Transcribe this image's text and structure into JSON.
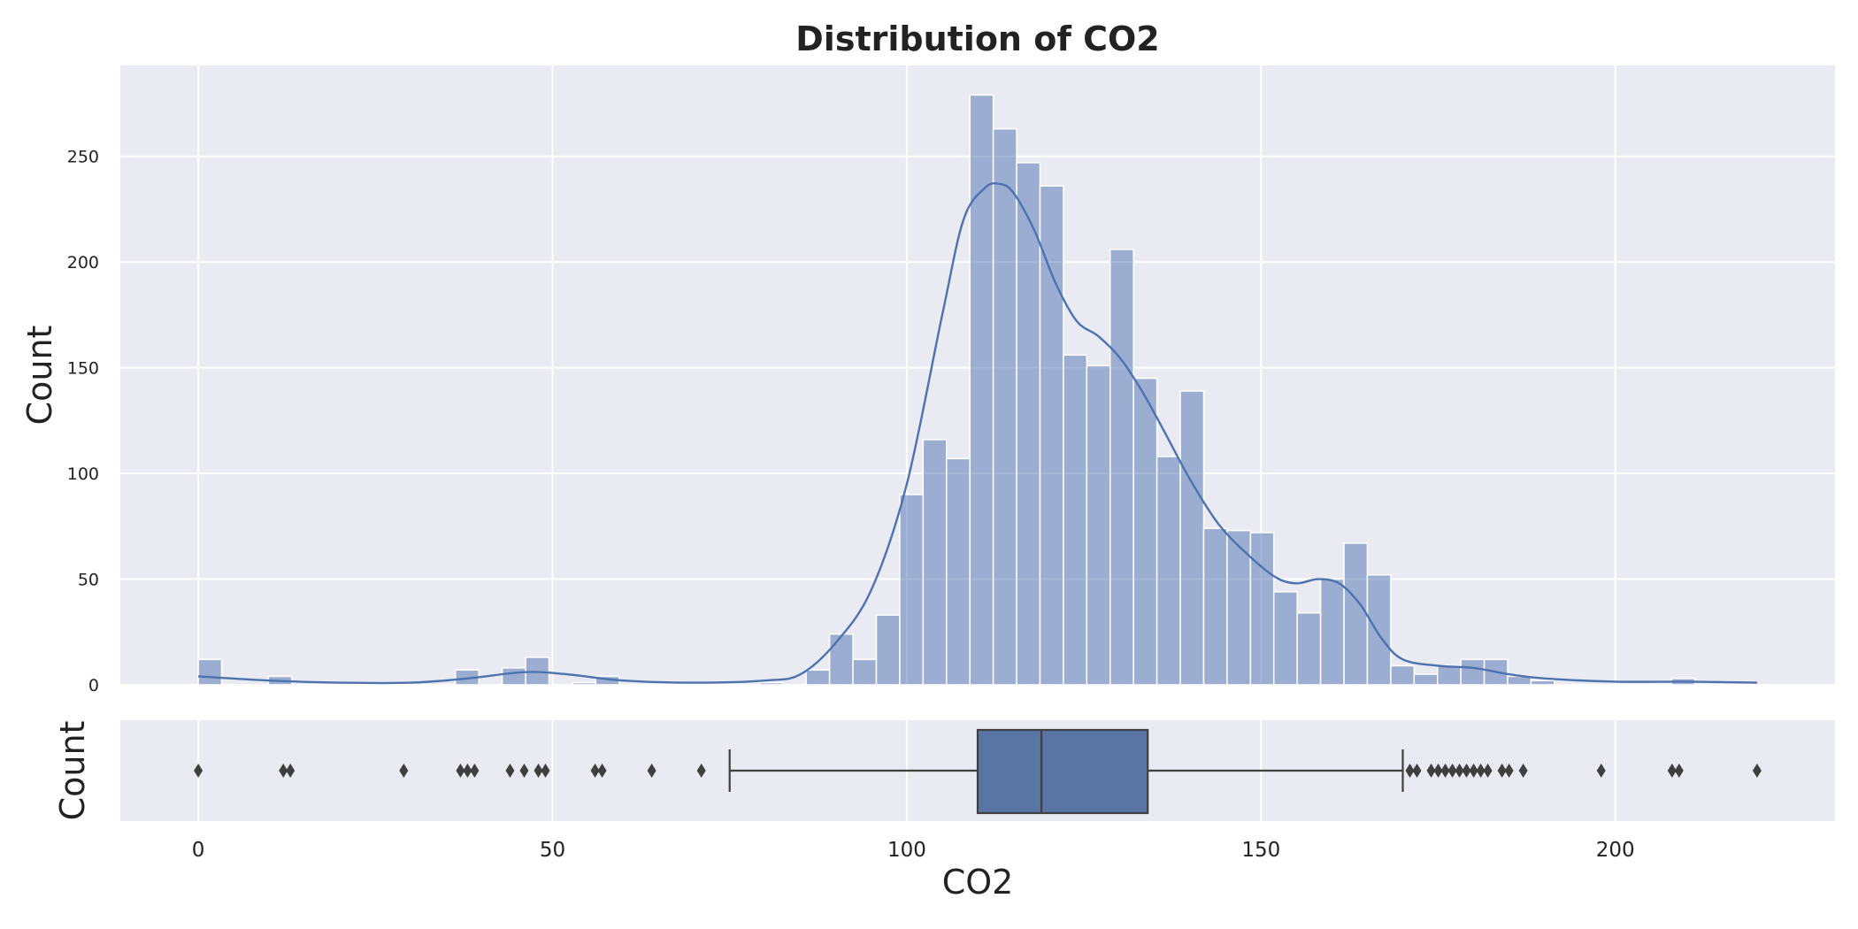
{
  "chart_data": [
    {
      "type": "histogram",
      "title": "Distribution of CO2",
      "xlabel": "",
      "ylabel": "Count",
      "xlim": [
        -11,
        231
      ],
      "ylim": [
        0,
        293
      ],
      "xticks": [
        0,
        50,
        100,
        150,
        200
      ],
      "yticks": [
        0,
        50,
        100,
        150,
        200,
        250
      ],
      "grid": true,
      "background": "#eaeaf2",
      "bar_color": "#4c72b0",
      "bin_width": 3.3,
      "bins": [
        {
          "x0": 0.0,
          "count": 12
        },
        {
          "x0": 3.3,
          "count": 0
        },
        {
          "x0": 6.6,
          "count": 0
        },
        {
          "x0": 9.9,
          "count": 4
        },
        {
          "x0": 13.2,
          "count": 0
        },
        {
          "x0": 16.5,
          "count": 0
        },
        {
          "x0": 19.8,
          "count": 0
        },
        {
          "x0": 23.1,
          "count": 0
        },
        {
          "x0": 26.4,
          "count": 0
        },
        {
          "x0": 29.7,
          "count": 0
        },
        {
          "x0": 33.0,
          "count": 0
        },
        {
          "x0": 36.3,
          "count": 7
        },
        {
          "x0": 39.6,
          "count": 0
        },
        {
          "x0": 42.9,
          "count": 8
        },
        {
          "x0": 46.2,
          "count": 13
        },
        {
          "x0": 49.5,
          "count": 0
        },
        {
          "x0": 52.8,
          "count": 1
        },
        {
          "x0": 56.1,
          "count": 4
        },
        {
          "x0": 59.4,
          "count": 0
        },
        {
          "x0": 62.7,
          "count": 0
        },
        {
          "x0": 66.0,
          "count": 0
        },
        {
          "x0": 69.3,
          "count": 0
        },
        {
          "x0": 72.6,
          "count": 0
        },
        {
          "x0": 75.9,
          "count": 0
        },
        {
          "x0": 79.2,
          "count": 1
        },
        {
          "x0": 82.5,
          "count": 0
        },
        {
          "x0": 85.8,
          "count": 7
        },
        {
          "x0": 89.1,
          "count": 24
        },
        {
          "x0": 92.4,
          "count": 12
        },
        {
          "x0": 95.7,
          "count": 33
        },
        {
          "x0": 99.0,
          "count": 90
        },
        {
          "x0": 102.3,
          "count": 116
        },
        {
          "x0": 105.6,
          "count": 107
        },
        {
          "x0": 108.9,
          "count": 279
        },
        {
          "x0": 112.2,
          "count": 263
        },
        {
          "x0": 115.5,
          "count": 247
        },
        {
          "x0": 118.8,
          "count": 236
        },
        {
          "x0": 122.1,
          "count": 156
        },
        {
          "x0": 125.4,
          "count": 151
        },
        {
          "x0": 128.7,
          "count": 206
        },
        {
          "x0": 132.0,
          "count": 145
        },
        {
          "x0": 135.3,
          "count": 108
        },
        {
          "x0": 138.6,
          "count": 139
        },
        {
          "x0": 141.9,
          "count": 74
        },
        {
          "x0": 145.2,
          "count": 73
        },
        {
          "x0": 148.5,
          "count": 72
        },
        {
          "x0": 151.8,
          "count": 44
        },
        {
          "x0": 155.1,
          "count": 34
        },
        {
          "x0": 158.4,
          "count": 50
        },
        {
          "x0": 161.7,
          "count": 67
        },
        {
          "x0": 165.0,
          "count": 52
        },
        {
          "x0": 168.3,
          "count": 9
        },
        {
          "x0": 171.6,
          "count": 5
        },
        {
          "x0": 174.9,
          "count": 9
        },
        {
          "x0": 178.2,
          "count": 12
        },
        {
          "x0": 181.5,
          "count": 12
        },
        {
          "x0": 184.8,
          "count": 4
        },
        {
          "x0": 188.1,
          "count": 2
        },
        {
          "x0": 191.4,
          "count": 0
        },
        {
          "x0": 194.7,
          "count": 0
        },
        {
          "x0": 198.0,
          "count": 0
        },
        {
          "x0": 201.3,
          "count": 0
        },
        {
          "x0": 204.6,
          "count": 0
        },
        {
          "x0": 207.9,
          "count": 3
        },
        {
          "x0": 211.2,
          "count": 0
        },
        {
          "x0": 214.5,
          "count": 0
        }
      ],
      "kde": {
        "color": "#4c72b0",
        "x": [
          0,
          10,
          20,
          30,
          38,
          46,
          52,
          60,
          70,
          80,
          85,
          90,
          95,
          100,
          105,
          108,
          111,
          113,
          115,
          118,
          121,
          124,
          127,
          130,
          133,
          136,
          140,
          144,
          148,
          152,
          155,
          158,
          161,
          164,
          167,
          170,
          175,
          180,
          185,
          190,
          200,
          210,
          220
        ],
        "y": [
          4,
          2,
          1,
          1,
          3,
          6,
          5,
          2,
          1,
          2,
          5,
          20,
          45,
          95,
          175,
          220,
          235,
          237,
          233,
          215,
          190,
          172,
          165,
          155,
          140,
          122,
          97,
          76,
          62,
          51,
          48,
          50,
          48,
          38,
          22,
          12,
          9,
          8,
          5,
          3,
          1.5,
          1.5,
          1
        ]
      }
    },
    {
      "type": "boxplot",
      "xlabel": "CO2",
      "ylabel": "Count",
      "xlim": [
        -11,
        231
      ],
      "xticks": [
        0,
        50,
        100,
        150,
        200
      ],
      "grid": true,
      "background": "#eaeaf2",
      "box_color": "#5975a4",
      "line_color": "#3f3f3f",
      "whisker_low": 75,
      "q1": 110,
      "median": 119,
      "q3": 134,
      "whisker_high": 170,
      "outliers": [
        0,
        12,
        13,
        29,
        37,
        38,
        39,
        44,
        46,
        48,
        49,
        56,
        57,
        64,
        71,
        171,
        172,
        174,
        175,
        176,
        177,
        178,
        179,
        180,
        181,
        182,
        184,
        185,
        187,
        198,
        208,
        209,
        220
      ]
    }
  ]
}
